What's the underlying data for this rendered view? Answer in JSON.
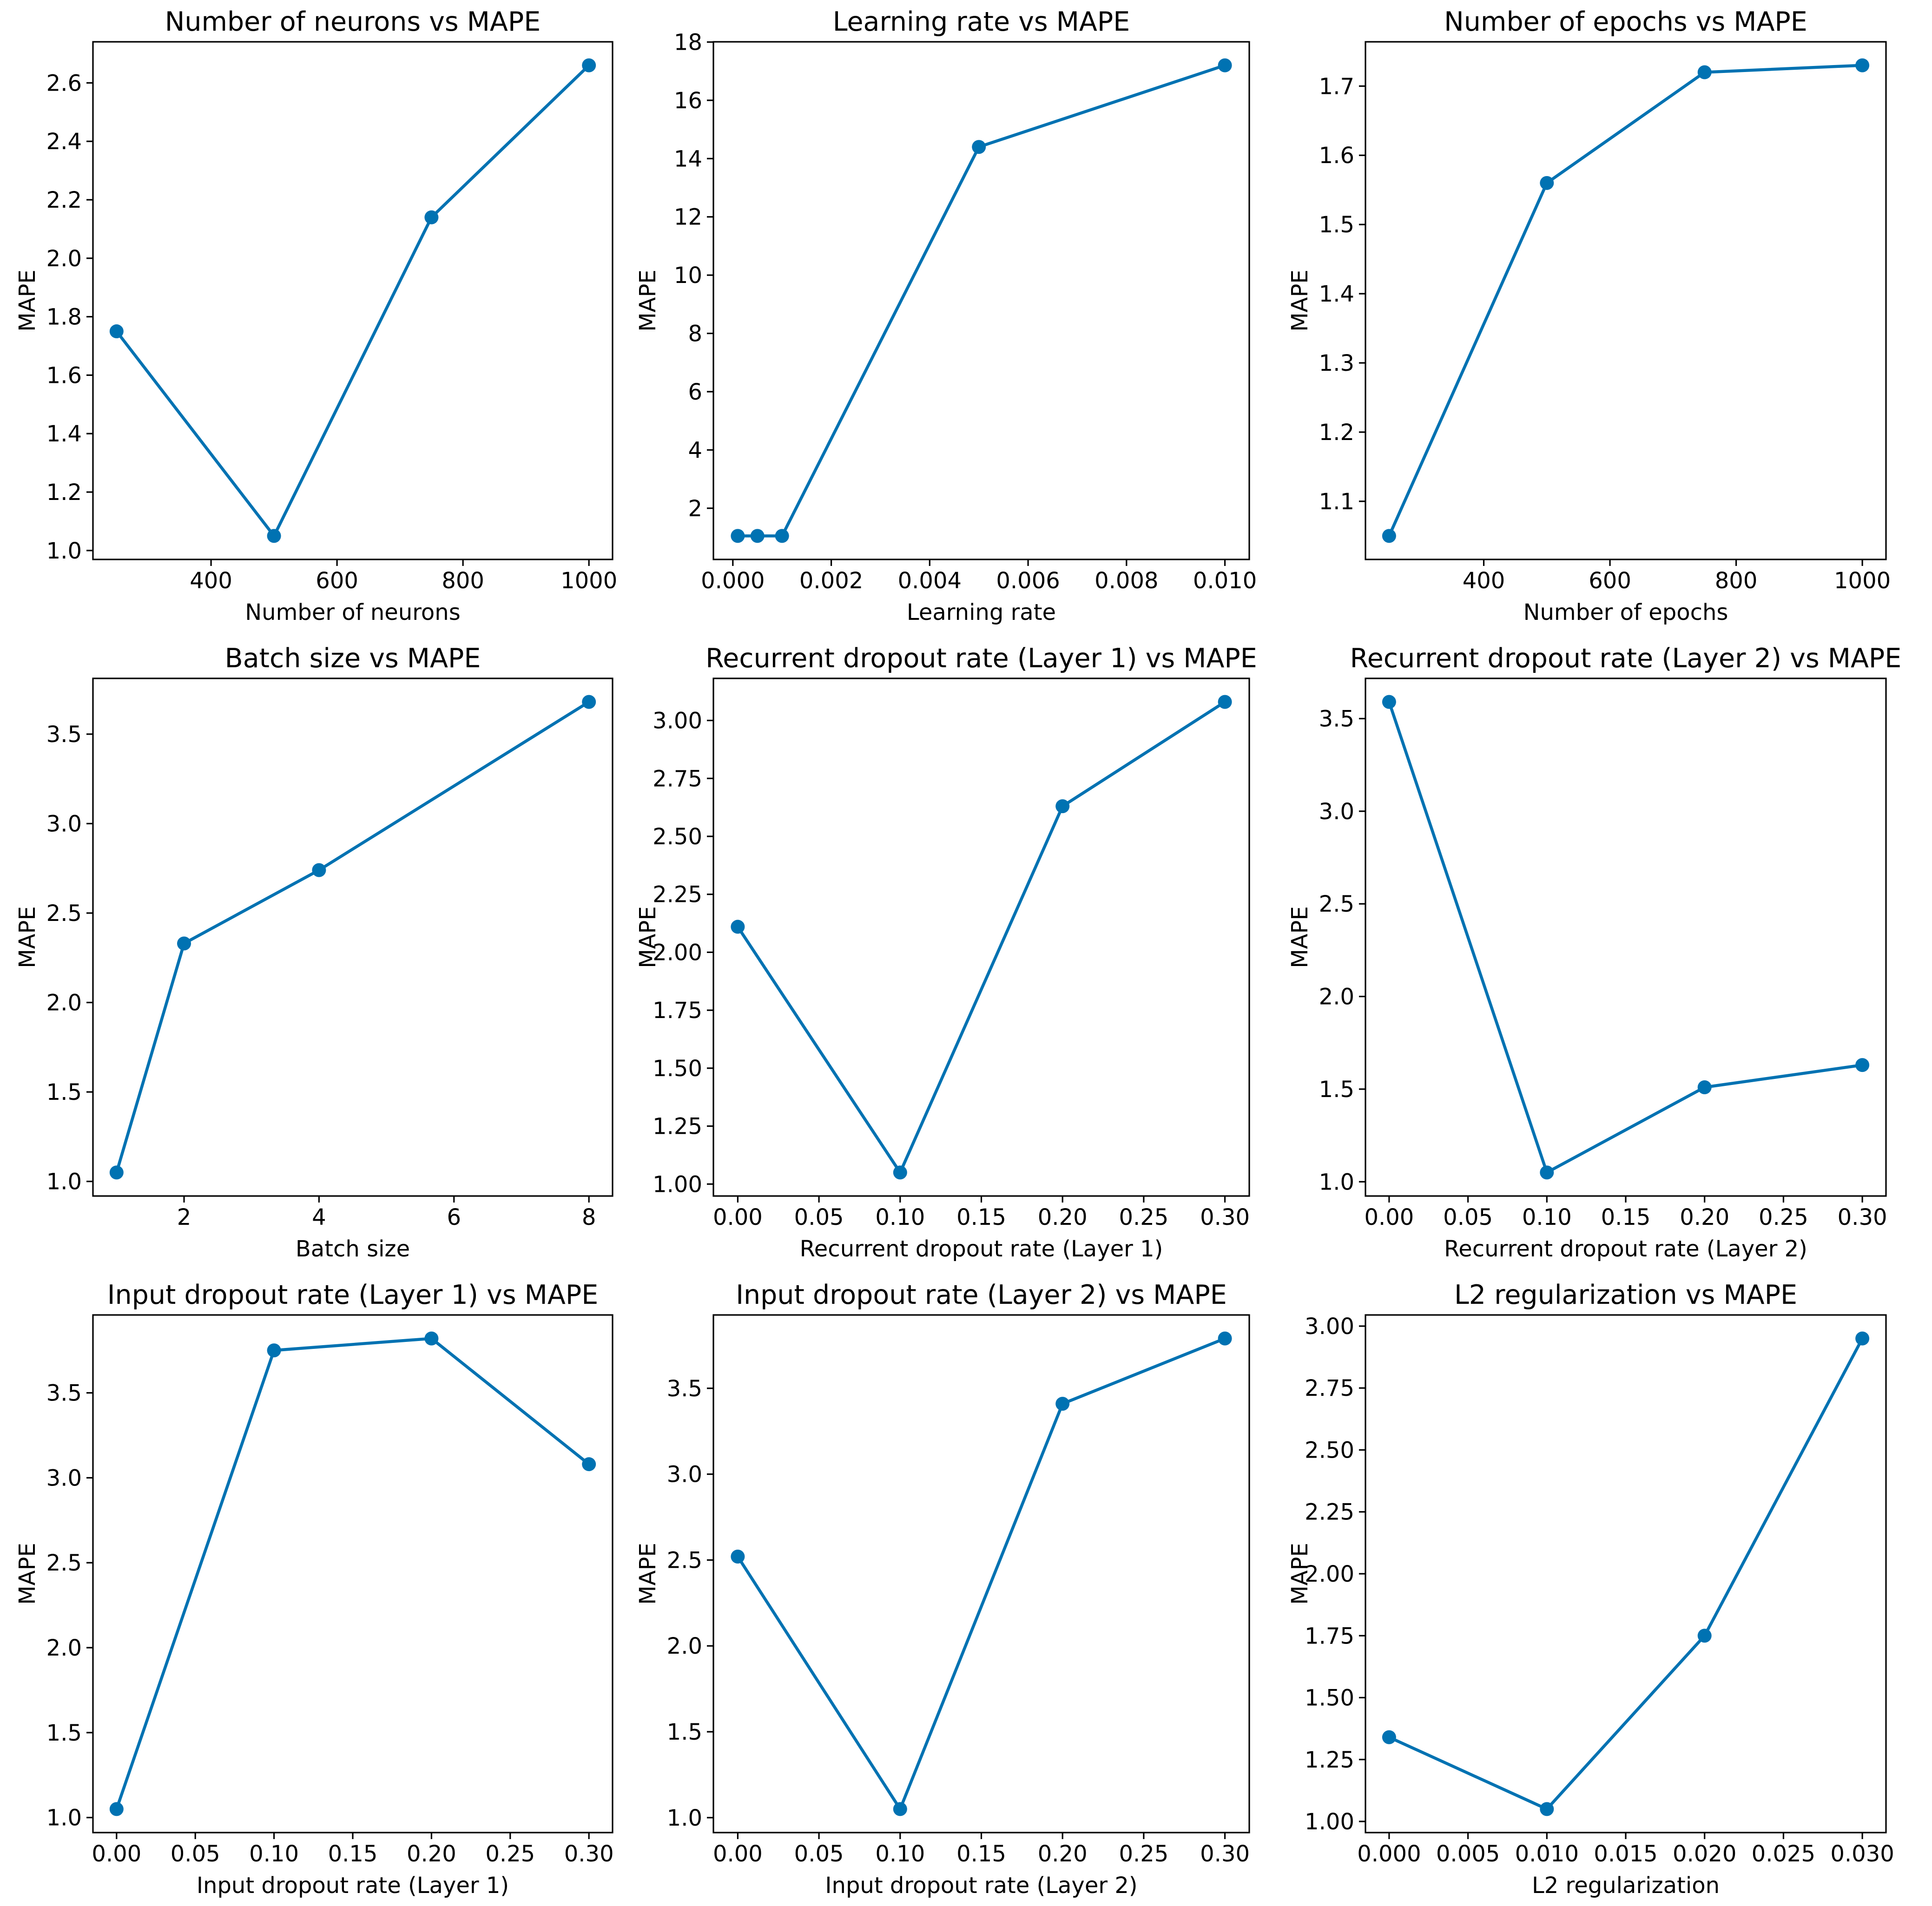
{
  "figure": {
    "series_color": "#0072b2"
  },
  "chart_data": [
    {
      "type": "line",
      "title": "Number of neurons vs MAPE",
      "xlabel": "Number of neurons",
      "ylabel": "MAPE",
      "x": [
        250,
        500,
        750,
        1000
      ],
      "values": [
        1.75,
        1.05,
        2.14,
        2.66
      ],
      "xlim": [
        212.5,
        1037.5
      ],
      "ylim": [
        0.9695,
        2.7405
      ],
      "xticks": [
        400,
        600,
        800,
        1000
      ],
      "xtick_labels": [
        "400",
        "600",
        "800",
        "1000"
      ],
      "yticks": [
        1.0,
        1.2,
        1.4,
        1.6,
        1.8,
        2.0,
        2.2,
        2.4,
        2.6
      ],
      "ytick_labels": [
        "1.0",
        "1.2",
        "1.4",
        "1.6",
        "1.8",
        "2.0",
        "2.2",
        "2.4",
        "2.6"
      ],
      "grid": false
    },
    {
      "type": "line",
      "title": "Learning rate vs MAPE",
      "xlabel": "Learning rate",
      "ylabel": "MAPE",
      "x": [
        0.0001,
        0.0005,
        0.001,
        0.005,
        0.01
      ],
      "values": [
        1.05,
        1.05,
        1.05,
        14.4,
        17.2
      ],
      "xlim": [
        -0.000395,
        0.010495
      ],
      "ylim": [
        0.2425,
        18.0075
      ],
      "xticks": [
        0.0,
        0.002,
        0.004,
        0.006,
        0.008,
        0.01
      ],
      "xtick_labels": [
        "0.000",
        "0.002",
        "0.004",
        "0.006",
        "0.008",
        "0.010"
      ],
      "yticks": [
        2,
        4,
        6,
        8,
        10,
        12,
        14,
        16,
        18
      ],
      "ytick_labels": [
        "2",
        "4",
        "6",
        "8",
        "10",
        "12",
        "14",
        "16",
        "18"
      ],
      "grid": false
    },
    {
      "type": "line",
      "title": "Number of epochs vs MAPE",
      "xlabel": "Number of epochs",
      "ylabel": "MAPE",
      "x": [
        250,
        500,
        750,
        1000
      ],
      "values": [
        1.05,
        1.56,
        1.72,
        1.73
      ],
      "xlim": [
        212.5,
        1037.5
      ],
      "ylim": [
        1.016,
        1.764
      ],
      "xticks": [
        400,
        600,
        800,
        1000
      ],
      "xtick_labels": [
        "400",
        "600",
        "800",
        "1000"
      ],
      "yticks": [
        1.1,
        1.2,
        1.3,
        1.4,
        1.5,
        1.6,
        1.7
      ],
      "ytick_labels": [
        "1.1",
        "1.2",
        "1.3",
        "1.4",
        "1.5",
        "1.6",
        "1.7"
      ],
      "grid": false
    },
    {
      "type": "line",
      "title": "Batch size vs MAPE",
      "xlabel": "Batch size",
      "ylabel": "MAPE",
      "x": [
        1,
        2,
        4,
        8
      ],
      "values": [
        1.05,
        2.33,
        2.74,
        3.68
      ],
      "xlim": [
        0.65,
        8.35
      ],
      "ylim": [
        0.9185,
        3.8115
      ],
      "xticks": [
        2,
        4,
        6,
        8
      ],
      "xtick_labels": [
        "2",
        "4",
        "6",
        "8"
      ],
      "yticks": [
        1.0,
        1.5,
        2.0,
        2.5,
        3.0,
        3.5
      ],
      "ytick_labels": [
        "1.0",
        "1.5",
        "2.0",
        "2.5",
        "3.0",
        "3.5"
      ],
      "grid": false
    },
    {
      "type": "line",
      "title": "Recurrent dropout rate (Layer 1) vs MAPE",
      "xlabel": "Recurrent dropout rate (Layer 1)",
      "ylabel": "MAPE",
      "x": [
        0.0,
        0.1,
        0.2,
        0.3
      ],
      "values": [
        2.11,
        1.05,
        2.63,
        3.08
      ],
      "xlim": [
        -0.015,
        0.315
      ],
      "ylim": [
        0.9485,
        3.1815
      ],
      "xticks": [
        0.0,
        0.05,
        0.1,
        0.15,
        0.2,
        0.25,
        0.3
      ],
      "xtick_labels": [
        "0.00",
        "0.05",
        "0.10",
        "0.15",
        "0.20",
        "0.25",
        "0.30"
      ],
      "yticks": [
        1.0,
        1.25,
        1.5,
        1.75,
        2.0,
        2.25,
        2.5,
        2.75,
        3.0
      ],
      "ytick_labels": [
        "1.00",
        "1.25",
        "1.50",
        "1.75",
        "2.00",
        "2.25",
        "2.50",
        "2.75",
        "3.00"
      ],
      "grid": false
    },
    {
      "type": "line",
      "title": "Recurrent dropout rate (Layer 2) vs MAPE",
      "xlabel": "Recurrent dropout rate (Layer 2)",
      "ylabel": "MAPE",
      "x": [
        0.0,
        0.1,
        0.2,
        0.3
      ],
      "values": [
        3.59,
        1.05,
        1.51,
        1.63
      ],
      "xlim": [
        -0.015,
        0.315
      ],
      "ylim": [
        0.923,
        3.717
      ],
      "xticks": [
        0.0,
        0.05,
        0.1,
        0.15,
        0.2,
        0.25,
        0.3
      ],
      "xtick_labels": [
        "0.00",
        "0.05",
        "0.10",
        "0.15",
        "0.20",
        "0.25",
        "0.30"
      ],
      "yticks": [
        1.0,
        1.5,
        2.0,
        2.5,
        3.0,
        3.5
      ],
      "ytick_labels": [
        "1.0",
        "1.5",
        "2.0",
        "2.5",
        "3.0",
        "3.5"
      ],
      "grid": false
    },
    {
      "type": "line",
      "title": "Input dropout rate (Layer 1) vs MAPE",
      "xlabel": "Input dropout rate (Layer 1)",
      "ylabel": "MAPE",
      "x": [
        0.0,
        0.1,
        0.2,
        0.3
      ],
      "values": [
        1.05,
        3.75,
        3.82,
        3.08
      ],
      "xlim": [
        -0.015,
        0.315
      ],
      "ylim": [
        0.9115,
        3.9585
      ],
      "xticks": [
        0.0,
        0.05,
        0.1,
        0.15,
        0.2,
        0.25,
        0.3
      ],
      "xtick_labels": [
        "0.00",
        "0.05",
        "0.10",
        "0.15",
        "0.20",
        "0.25",
        "0.30"
      ],
      "yticks": [
        1.0,
        1.5,
        2.0,
        2.5,
        3.0,
        3.5
      ],
      "ytick_labels": [
        "1.0",
        "1.5",
        "2.0",
        "2.5",
        "3.0",
        "3.5"
      ],
      "grid": false
    },
    {
      "type": "line",
      "title": "Input dropout rate (Layer 2) vs MAPE",
      "xlabel": "Input dropout rate (Layer 2)",
      "ylabel": "MAPE",
      "x": [
        0.0,
        0.1,
        0.2,
        0.3
      ],
      "values": [
        2.52,
        1.05,
        3.41,
        3.79
      ],
      "xlim": [
        -0.015,
        0.315
      ],
      "ylim": [
        0.913,
        3.927
      ],
      "xticks": [
        0.0,
        0.05,
        0.1,
        0.15,
        0.2,
        0.25,
        0.3
      ],
      "xtick_labels": [
        "0.00",
        "0.05",
        "0.10",
        "0.15",
        "0.20",
        "0.25",
        "0.30"
      ],
      "yticks": [
        1.0,
        1.5,
        2.0,
        2.5,
        3.0,
        3.5
      ],
      "ytick_labels": [
        "1.0",
        "1.5",
        "2.0",
        "2.5",
        "3.0",
        "3.5"
      ],
      "grid": false
    },
    {
      "type": "line",
      "title": "L2 regularization vs MAPE",
      "xlabel": "L2 regularization",
      "ylabel": "MAPE",
      "x": [
        0.0,
        0.01,
        0.02,
        0.03
      ],
      "values": [
        1.34,
        1.05,
        1.75,
        2.95
      ],
      "xlim": [
        -0.0015,
        0.0315
      ],
      "ylim": [
        0.955,
        3.045
      ],
      "xticks": [
        0.0,
        0.005,
        0.01,
        0.015,
        0.02,
        0.025,
        0.03
      ],
      "xtick_labels": [
        "0.000",
        "0.005",
        "0.010",
        "0.015",
        "0.020",
        "0.025",
        "0.030"
      ],
      "yticks": [
        1.0,
        1.25,
        1.5,
        1.75,
        2.0,
        2.25,
        2.5,
        2.75,
        3.0
      ],
      "ytick_labels": [
        "1.00",
        "1.25",
        "1.50",
        "1.75",
        "2.00",
        "2.25",
        "2.50",
        "2.75",
        "3.00"
      ],
      "grid": false
    }
  ]
}
